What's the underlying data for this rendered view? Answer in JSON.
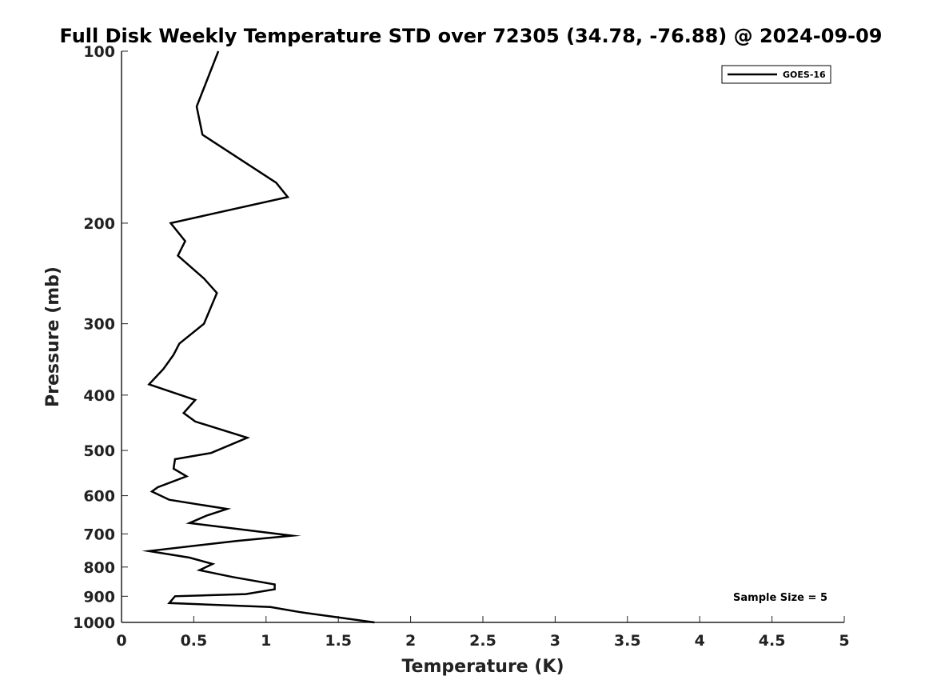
{
  "chart_data": {
    "type": "line",
    "title": "Full Disk Weekly Temperature STD over 72305 (34.78, -76.88) @ 2024-09-09",
    "xlabel": "Temperature (K)",
    "ylabel": "Pressure (mb)",
    "xlim": [
      0,
      5
    ],
    "ylim": [
      1000,
      100
    ],
    "yscale": "log",
    "y_reversed": true,
    "xticks": [
      0,
      0.5,
      1,
      1.5,
      2,
      2.5,
      3,
      3.5,
      4,
      4.5,
      5
    ],
    "xtick_labels": [
      "0",
      "0.5",
      "1",
      "1.5",
      "2",
      "2.5",
      "3",
      "3.5",
      "4",
      "4.5",
      "5"
    ],
    "yticks": [
      100,
      200,
      300,
      400,
      500,
      600,
      700,
      800,
      900,
      1000
    ],
    "ytick_labels": [
      "100",
      "200",
      "300",
      "400",
      "500",
      "600",
      "700",
      "800",
      "900",
      "1000"
    ],
    "grid": false,
    "legend_position": "top-right",
    "annotation": "Sample Size = 5",
    "series": [
      {
        "name": "GOES-16",
        "color": "#000000",
        "x": [
          0.67,
          0.52,
          0.56,
          1.07,
          1.15,
          0.34,
          0.44,
          0.39,
          0.57,
          0.66,
          0.57,
          0.4,
          0.36,
          0.29,
          0.19,
          0.51,
          0.43,
          0.51,
          0.87,
          0.62,
          0.37,
          0.36,
          0.45,
          0.25,
          0.21,
          0.33,
          0.73,
          0.59,
          0.47,
          1.18,
          0.8,
          0.19,
          0.47,
          0.63,
          0.54,
          0.77,
          1.06,
          1.06,
          0.86,
          0.37,
          0.33,
          1.03,
          1.24,
          1.5,
          1.75
        ],
        "y": [
          100,
          125,
          140,
          170,
          180,
          200,
          215,
          228,
          250,
          265,
          300,
          325,
          340,
          360,
          383,
          408,
          430,
          445,
          475,
          505,
          518,
          538,
          555,
          580,
          590,
          610,
          633,
          650,
          670,
          705,
          720,
          750,
          770,
          790,
          810,
          833,
          858,
          875,
          892,
          900,
          925,
          940,
          960,
          980,
          1000
        ]
      }
    ]
  }
}
